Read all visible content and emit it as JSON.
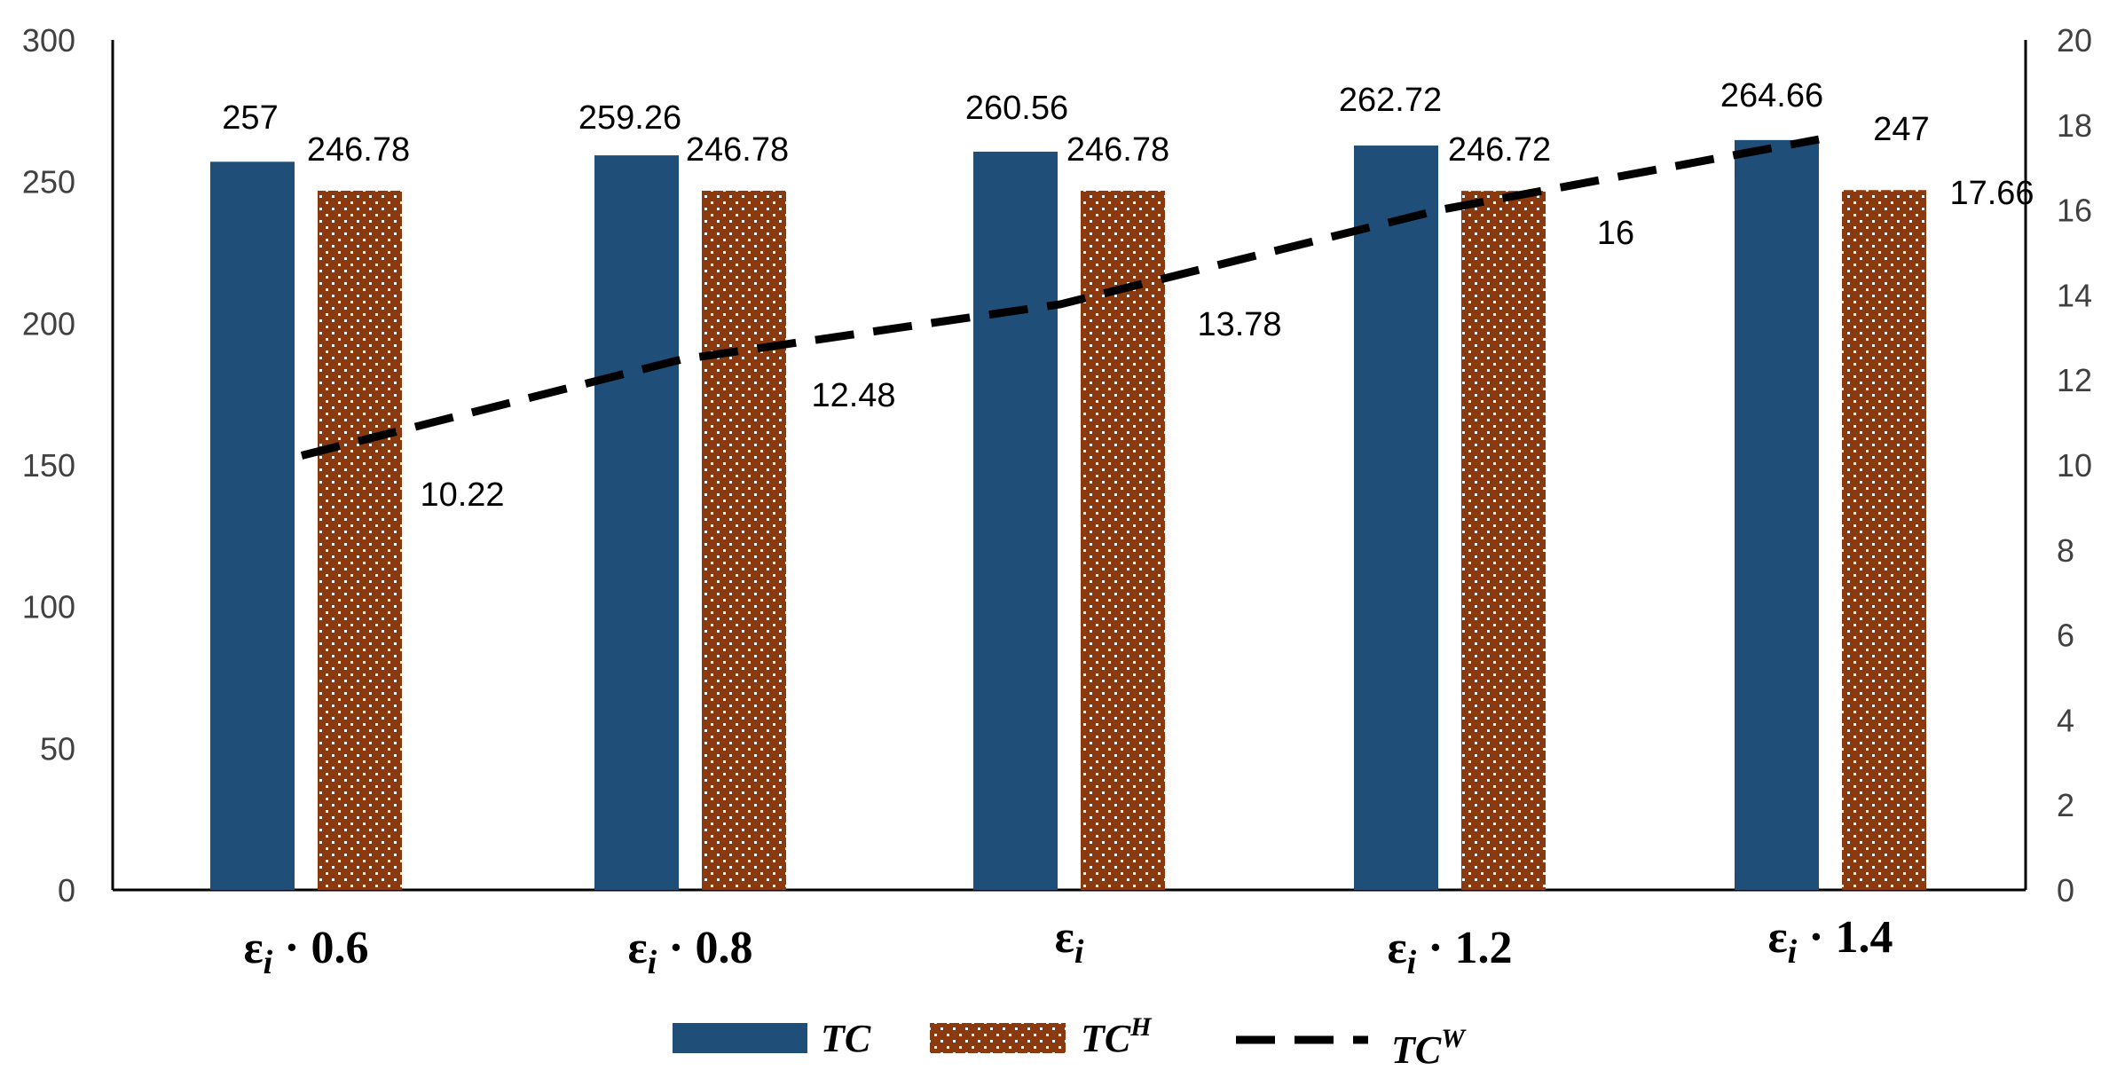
{
  "chart_data": {
    "type": "bar",
    "categories": [
      {
        "base": "ε",
        "sub": "i",
        "suffix": " · 0.6"
      },
      {
        "base": "ε",
        "sub": "i",
        "suffix": " · 0.8"
      },
      {
        "base": "ε",
        "sub": "i",
        "suffix": ""
      },
      {
        "base": "ε",
        "sub": "i",
        "suffix": " · 1.2"
      },
      {
        "base": "ε",
        "sub": "i",
        "suffix": " · 1.4"
      }
    ],
    "series": [
      {
        "name": "TC",
        "axis": "left",
        "kind": "bar",
        "color": "#1f4e79",
        "values": [
          257,
          259.26,
          260.56,
          262.72,
          264.66
        ],
        "labels": [
          "257",
          "259.26",
          "260.56",
          "262.72",
          "264.66"
        ]
      },
      {
        "name": "TC",
        "superscript": "H",
        "axis": "left",
        "kind": "bar",
        "pattern": "dots",
        "color": "#8b3a0f",
        "values": [
          246.78,
          246.78,
          246.78,
          246.72,
          247
        ],
        "labels": [
          "246.78",
          "246.78",
          "246.78",
          "246.72",
          "247"
        ]
      },
      {
        "name": "TC",
        "superscript": "W",
        "axis": "right",
        "kind": "line",
        "style": "dashed",
        "color": "#000000",
        "values": [
          10.22,
          12.48,
          13.78,
          16,
          17.66
        ],
        "labels": [
          "10.22",
          "12.48",
          "13.78",
          "16",
          "17.66"
        ]
      }
    ],
    "y_left": {
      "min": 0,
      "max": 300,
      "ticks": [
        "0",
        "50",
        "100",
        "150",
        "200",
        "250",
        "300"
      ]
    },
    "y_right": {
      "min": 0,
      "max": 20,
      "ticks": [
        "0",
        "2",
        "4",
        "6",
        "8",
        "10",
        "12",
        "14",
        "16",
        "18",
        "20"
      ]
    },
    "legend_position": "bottom",
    "grid": false
  }
}
